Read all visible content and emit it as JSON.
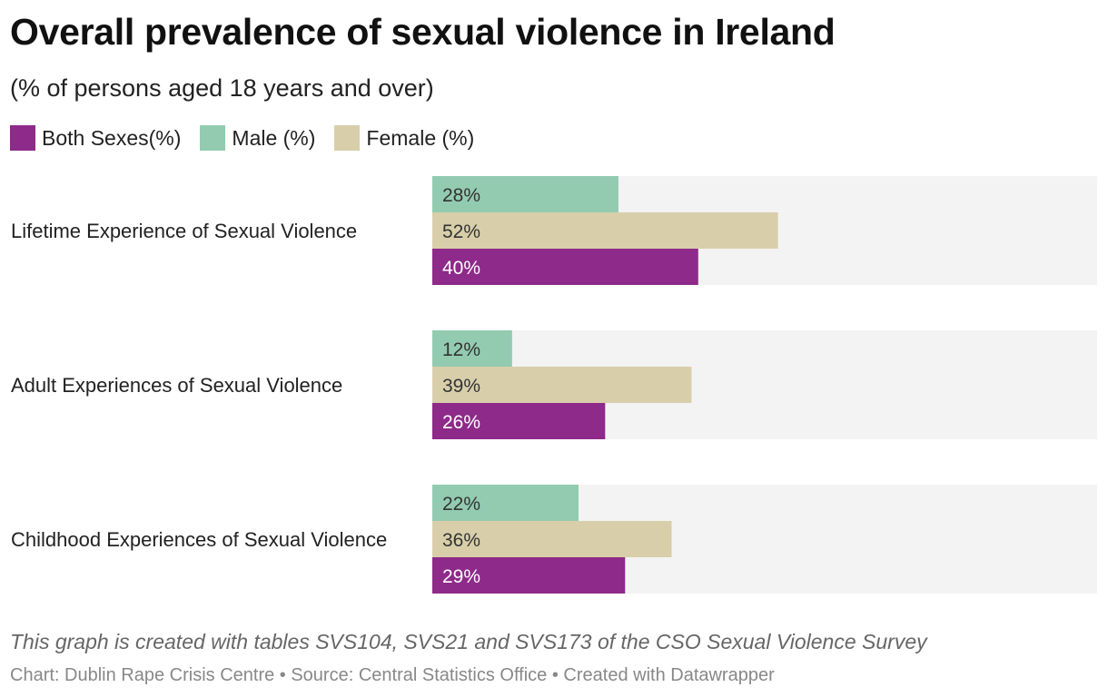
{
  "title": "Overall prevalence of sexual violence in Ireland",
  "subtitle": "(% of persons aged 18 years and over)",
  "note": "This graph is created with tables SVS104, SVS21 and SVS173 of the CSO Sexual Violence Survey",
  "credits": "Chart: Dublin Rape Crisis Centre • Source: Central Statistics Office  • Created with Datawrapper",
  "colors": {
    "both": "#8e2a89",
    "male": "#93cbb1",
    "female": "#d8cfaa",
    "track": "#f3f3f3",
    "label_dark": "#333333",
    "label_light": "#ffffff"
  },
  "chart_data": {
    "type": "bar",
    "orientation": "horizontal",
    "title": "Overall prevalence of sexual violence in Ireland",
    "subtitle": "(% of persons aged 18 years and over)",
    "categories": [
      "Lifetime Experience of Sexual Violence",
      "Adult Experiences of Sexual Violence",
      "Childhood Experiences of Sexual Violence"
    ],
    "series": [
      {
        "name": "Male (%)",
        "key": "male",
        "values": [
          28,
          12,
          22
        ],
        "labels": [
          "28%",
          "12%",
          "22%"
        ]
      },
      {
        "name": "Female (%)",
        "key": "female",
        "values": [
          52,
          39,
          36
        ],
        "labels": [
          "52%",
          "39%",
          "36%"
        ]
      },
      {
        "name": "Both Sexes(%)",
        "key": "both",
        "values": [
          40,
          26,
          29
        ],
        "labels": [
          "40%",
          "26%",
          "29%"
        ]
      }
    ],
    "legend": [
      {
        "name": "Both Sexes(%)",
        "key": "both"
      },
      {
        "name": "Male (%)",
        "key": "male"
      },
      {
        "name": "Female (%)",
        "key": "female"
      }
    ],
    "xlim": [
      0,
      100
    ],
    "xlabel": "",
    "ylabel": "",
    "grid": false,
    "legend_position": "top-left"
  }
}
